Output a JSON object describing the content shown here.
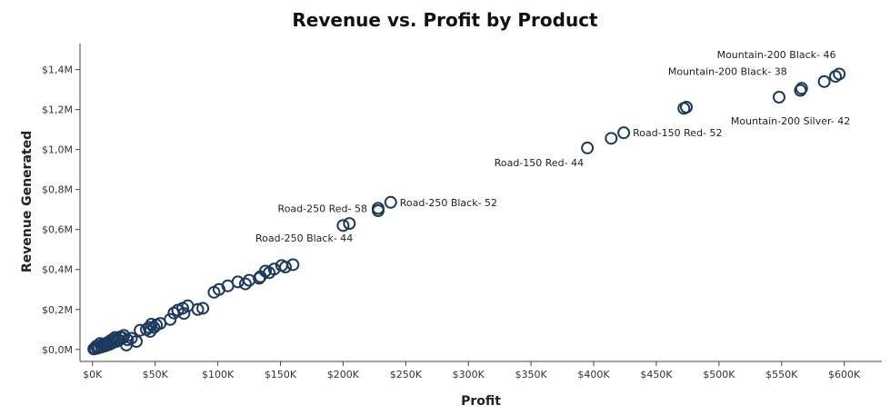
{
  "chart_data": {
    "type": "scatter",
    "title": "Revenue vs. Profit by Product",
    "xlabel": "Profit",
    "ylabel": "Revenue Generated",
    "xlim": [
      -10000,
      630000
    ],
    "ylim": [
      -60000,
      1530000
    ],
    "x_ticks": [
      0,
      50000,
      100000,
      150000,
      200000,
      250000,
      300000,
      350000,
      400000,
      450000,
      500000,
      550000,
      600000
    ],
    "x_tick_labels": [
      "$0K",
      "$50K",
      "$100K",
      "$150K",
      "$200K",
      "$250K",
      "$300K",
      "$350K",
      "$400K",
      "$450K",
      "$500K",
      "$550K",
      "$600K"
    ],
    "y_ticks": [
      0,
      200000,
      400000,
      600000,
      800000,
      1000000,
      1200000,
      1400000
    ],
    "y_tick_labels": [
      "$0,0M",
      "$0,2M",
      "$0,4M",
      "$0,6M",
      "$0,8M",
      "$1,0M",
      "$1,2M",
      "$1,4M"
    ],
    "grid": false,
    "marker": "hollow-circle",
    "color": "#1c3a5e",
    "points": [
      [
        596000,
        1378000
      ],
      [
        593000,
        1366000
      ],
      [
        584000,
        1340000
      ],
      [
        566000,
        1306000
      ],
      [
        565000,
        1296000
      ],
      [
        548000,
        1262000
      ],
      [
        474000,
        1212000
      ],
      [
        472000,
        1206000
      ],
      [
        424000,
        1084000
      ],
      [
        414000,
        1056000
      ],
      [
        395000,
        1008000
      ],
      [
        238000,
        736000
      ],
      [
        228000,
        706000
      ],
      [
        228000,
        694000
      ],
      [
        205000,
        630000
      ],
      [
        200000,
        620000
      ],
      [
        160000,
        424000
      ],
      [
        154000,
        412000
      ],
      [
        151000,
        420000
      ],
      [
        145000,
        402000
      ],
      [
        141000,
        384000
      ],
      [
        138000,
        392000
      ],
      [
        134000,
        364000
      ],
      [
        133000,
        356000
      ],
      [
        125000,
        346000
      ],
      [
        122000,
        328000
      ],
      [
        116000,
        338000
      ],
      [
        108000,
        318000
      ],
      [
        101000,
        300000
      ],
      [
        97000,
        286000
      ],
      [
        88000,
        206000
      ],
      [
        84000,
        200000
      ],
      [
        76000,
        218000
      ],
      [
        72000,
        206000
      ],
      [
        73000,
        180000
      ],
      [
        68000,
        196000
      ],
      [
        65000,
        182000
      ],
      [
        62000,
        150000
      ],
      [
        54000,
        130000
      ],
      [
        51000,
        122000
      ],
      [
        49000,
        110000
      ],
      [
        47000,
        126000
      ],
      [
        46000,
        90000
      ],
      [
        45000,
        110000
      ],
      [
        43000,
        100000
      ],
      [
        38000,
        96000
      ],
      [
        31000,
        56000
      ],
      [
        28000,
        48000
      ],
      [
        25000,
        70000
      ],
      [
        24000,
        58000
      ],
      [
        22000,
        62000
      ],
      [
        21000,
        46000
      ],
      [
        20000,
        52000
      ],
      [
        19000,
        40000
      ],
      [
        18000,
        60000
      ],
      [
        17000,
        36000
      ],
      [
        16000,
        50000
      ],
      [
        15000,
        30000
      ],
      [
        14000,
        42000
      ],
      [
        13000,
        24000
      ],
      [
        12000,
        34000
      ],
      [
        11000,
        20000
      ],
      [
        10000,
        28000
      ],
      [
        9000,
        16000
      ],
      [
        8000,
        24000
      ],
      [
        7000,
        12000
      ],
      [
        6000,
        30000
      ],
      [
        5000,
        10000
      ],
      [
        4000,
        6000
      ],
      [
        3000,
        16000
      ],
      [
        2000,
        4000
      ],
      [
        1000,
        2000
      ],
      [
        27000,
        22000
      ],
      [
        35000,
        40000
      ]
    ],
    "annotations": [
      {
        "text": "Mountain-200 Black- 46",
        "x": 597000,
        "y": 1380000,
        "anchor": "end",
        "dx": -5,
        "dy": -17
      },
      {
        "text": "Mountain-200 Black- 38",
        "x": 566000,
        "y": 1306000,
        "anchor": "end",
        "dx": -16,
        "dy": -15
      },
      {
        "text": "Mountain-200 Silver- 42",
        "x": 584000,
        "y": 1340000,
        "anchor": "middle",
        "dx": -37,
        "dy": 47
      },
      {
        "text": "Road-150 Red- 52",
        "x": 424000,
        "y": 1084000,
        "anchor": "start",
        "dx": 10,
        "dy": 4
      },
      {
        "text": "Road-150 Red- 44",
        "x": 395000,
        "y": 1008000,
        "anchor": "end",
        "dx": -4,
        "dy": 20
      },
      {
        "text": "Road-250 Black- 52",
        "x": 238000,
        "y": 736000,
        "anchor": "start",
        "dx": 10,
        "dy": 4
      },
      {
        "text": "Road-250 Red- 58",
        "x": 228000,
        "y": 706000,
        "anchor": "end",
        "dx": -12,
        "dy": 4
      },
      {
        "text": "Road-250 Black- 44",
        "x": 205000,
        "y": 630000,
        "anchor": "end",
        "dx": 4,
        "dy": 20
      }
    ]
  }
}
